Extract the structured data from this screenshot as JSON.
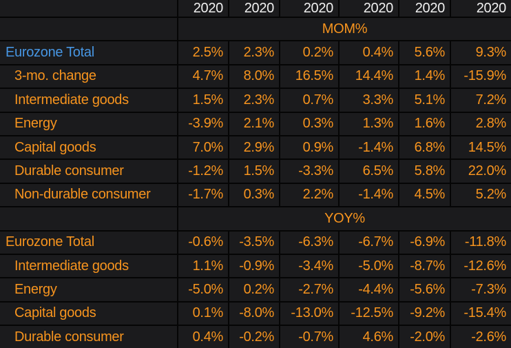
{
  "colors": {
    "accent_orange": "#f7941e",
    "highlight_blue": "#4796e3",
    "header_white": "#f0f0f0",
    "cell_bg": "#1b1b1d",
    "grid_line": "#050505"
  },
  "table": {
    "columns": [
      "2020",
      "2020",
      "2020",
      "2020",
      "2020",
      "2020"
    ],
    "sections": [
      {
        "label": "MOM%",
        "rows": [
          {
            "name": "Eurozone Total",
            "values": [
              "2.5%",
              "2.3%",
              "0.2%",
              "0.4%",
              "5.6%",
              "9.3%"
            ]
          },
          {
            "name": "3-mo. change",
            "values": [
              "4.7%",
              "8.0%",
              "16.5%",
              "14.4%",
              "1.4%",
              "-15.9%"
            ]
          },
          {
            "name": "Intermediate goods",
            "values": [
              "1.5%",
              "2.3%",
              "0.7%",
              "3.3%",
              "5.1%",
              "7.2%"
            ]
          },
          {
            "name": "Energy",
            "values": [
              "-3.9%",
              "2.1%",
              "0.3%",
              "1.3%",
              "1.6%",
              "2.8%"
            ]
          },
          {
            "name": "Capital goods",
            "values": [
              "7.0%",
              "2.9%",
              "0.9%",
              "-1.4%",
              "6.8%",
              "14.5%"
            ]
          },
          {
            "name": "Durable consumer",
            "values": [
              "-1.2%",
              "1.5%",
              "-3.3%",
              "6.5%",
              "5.8%",
              "22.0%"
            ]
          },
          {
            "name": "Non-durable consumer",
            "values": [
              "-1.7%",
              "0.3%",
              "2.2%",
              "-1.4%",
              "4.5%",
              "5.2%"
            ]
          }
        ]
      },
      {
        "label": "YOY%",
        "rows": [
          {
            "name": "Eurozone Total",
            "values": [
              "-0.6%",
              "-3.5%",
              "-6.3%",
              "-6.7%",
              "-6.9%",
              "-11.8%"
            ]
          },
          {
            "name": "Intermediate goods",
            "values": [
              "1.1%",
              "-0.9%",
              "-3.4%",
              "-5.0%",
              "-8.7%",
              "-12.6%"
            ]
          },
          {
            "name": "Energy",
            "values": [
              "-5.0%",
              "0.2%",
              "-2.7%",
              "-4.4%",
              "-5.6%",
              "-7.3%"
            ]
          },
          {
            "name": "Capital goods",
            "values": [
              "0.1%",
              "-8.0%",
              "-13.0%",
              "-12.5%",
              "-9.2%",
              "-15.4%"
            ]
          },
          {
            "name": "Durable consumer",
            "values": [
              "0.4%",
              "-0.2%",
              "-0.7%",
              "4.6%",
              "-2.0%",
              "-2.6%"
            ]
          }
        ]
      }
    ]
  }
}
